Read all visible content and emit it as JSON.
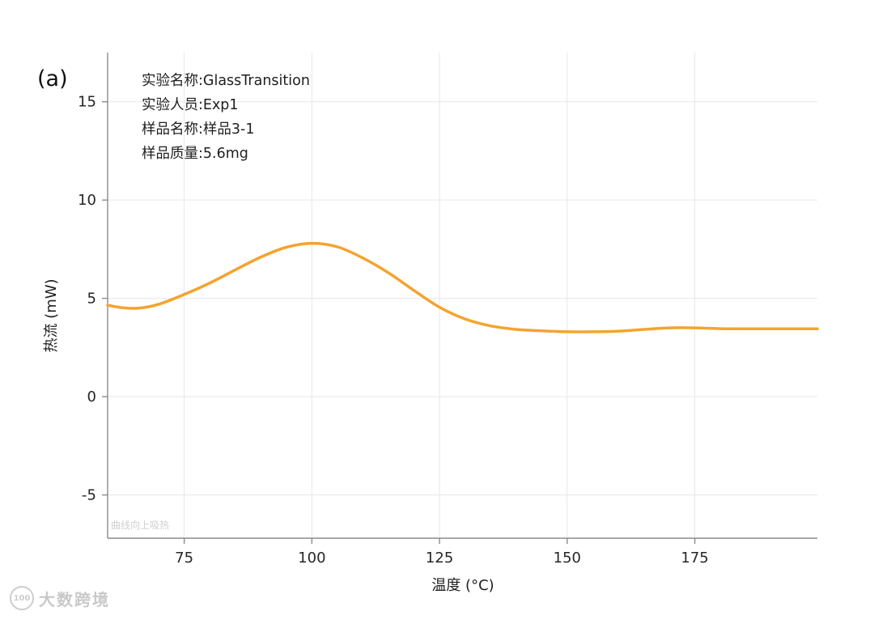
{
  "figure_label": "(a)",
  "info_lines": [
    "实验名称:GlassTransition",
    "实验人员:Exp1",
    "样品名称:样品3-1",
    "样品质量:5.6mg"
  ],
  "watermarks": {
    "plot_note": "曲线向上吸热",
    "brand_text": "大数跨境",
    "brand_logo": "100-badge-logo"
  },
  "chart_data": {
    "type": "line",
    "title": "",
    "xlabel": "温度 (°C)",
    "ylabel": "热流 (mW)",
    "xlim": [
      60,
      199
    ],
    "ylim": [
      -7.2,
      17.5
    ],
    "x_ticks": [
      75,
      100,
      125,
      150,
      175
    ],
    "y_ticks": [
      -5,
      0,
      5,
      10,
      15
    ],
    "grid": true,
    "legend": "none",
    "line_color": "#F5A32E",
    "line_width": 3.5,
    "series": [
      {
        "name": "热流",
        "x": [
          60,
          63,
          66,
          70,
          75,
          80,
          85,
          90,
          95,
          100,
          105,
          110,
          115,
          120,
          125,
          130,
          135,
          140,
          145,
          150,
          155,
          160,
          165,
          170,
          175,
          180,
          185,
          190,
          195,
          199
        ],
        "y": [
          4.65,
          4.52,
          4.5,
          4.7,
          5.2,
          5.78,
          6.45,
          7.1,
          7.6,
          7.8,
          7.62,
          7.05,
          6.3,
          5.4,
          4.55,
          3.95,
          3.6,
          3.42,
          3.35,
          3.3,
          3.3,
          3.33,
          3.42,
          3.5,
          3.5,
          3.46,
          3.45,
          3.45,
          3.45,
          3.45
        ]
      }
    ]
  }
}
